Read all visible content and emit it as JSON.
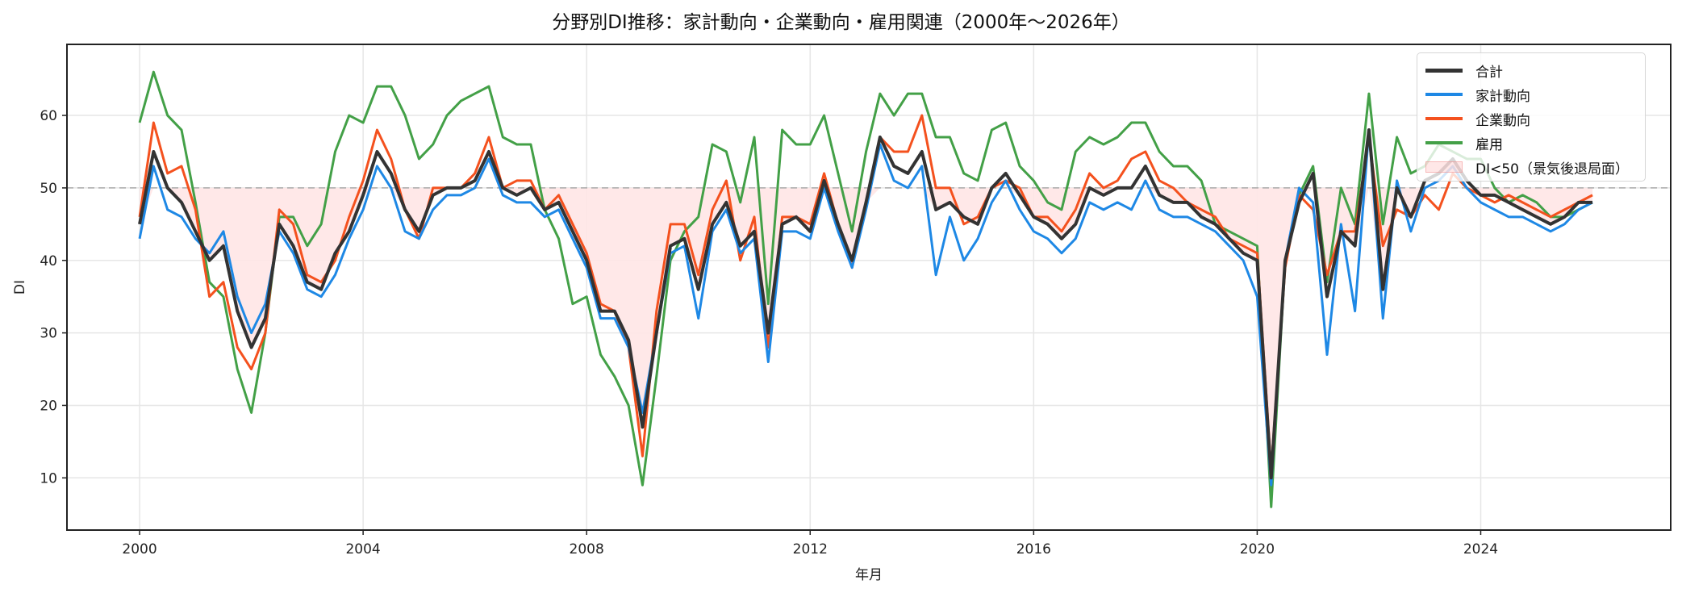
{
  "chart_data": {
    "type": "line",
    "title": "分野別DI推移：家計動向・企業動向・雇用関連（2000年〜2026年）",
    "xlabel": "年月",
    "ylabel": "DI",
    "xlim": [
      1998.7,
      2027.4
    ],
    "ylim": [
      2.8,
      69.8
    ],
    "x_ticks": [
      2000,
      2004,
      2008,
      2012,
      2016,
      2020,
      2024
    ],
    "y_ticks": [
      10,
      20,
      30,
      40,
      50,
      60
    ],
    "grid": true,
    "legend_position": "upper right",
    "reference_line": {
      "y": 50,
      "style": "dashed",
      "color": "#aaaaaa"
    },
    "shaded_region": {
      "label": "DI<50（景気後退局面）",
      "condition": "合計 < 50",
      "fill": "#ffe5e5"
    },
    "x": [
      2000.0,
      2000.25,
      2000.5,
      2000.75,
      2001.0,
      2001.25,
      2001.5,
      2001.75,
      2002.0,
      2002.25,
      2002.5,
      2002.75,
      2003.0,
      2003.25,
      2003.5,
      2003.75,
      2004.0,
      2004.25,
      2004.5,
      2004.75,
      2005.0,
      2005.25,
      2005.5,
      2005.75,
      2006.0,
      2006.25,
      2006.5,
      2006.75,
      2007.0,
      2007.25,
      2007.5,
      2007.75,
      2008.0,
      2008.25,
      2008.5,
      2008.75,
      2009.0,
      2009.25,
      2009.5,
      2009.75,
      2010.0,
      2010.25,
      2010.5,
      2010.75,
      2011.0,
      2011.25,
      2011.5,
      2011.75,
      2012.0,
      2012.25,
      2012.5,
      2012.75,
      2013.0,
      2013.25,
      2013.5,
      2013.75,
      2014.0,
      2014.25,
      2014.5,
      2014.75,
      2015.0,
      2015.25,
      2015.5,
      2015.75,
      2016.0,
      2016.25,
      2016.5,
      2016.75,
      2017.0,
      2017.25,
      2017.5,
      2017.75,
      2018.0,
      2018.25,
      2018.5,
      2018.75,
      2019.0,
      2019.25,
      2019.5,
      2019.75,
      2020.0,
      2020.25,
      2020.5,
      2020.75,
      2021.0,
      2021.25,
      2021.5,
      2021.75,
      2022.0,
      2022.25,
      2022.5,
      2022.75,
      2023.0,
      2023.25,
      2023.5,
      2023.75,
      2024.0,
      2024.25,
      2024.5,
      2024.75,
      2025.0,
      2025.25,
      2025.5,
      2025.75,
      2026.0
    ],
    "series": [
      {
        "name": "合計",
        "color": "#333333",
        "width": 4,
        "values": [
          45,
          55,
          50,
          48,
          44,
          40,
          42,
          33,
          28,
          32,
          45,
          42,
          37,
          36,
          41,
          44,
          49,
          55,
          52,
          47,
          44,
          49,
          50,
          50,
          51,
          55,
          50,
          49,
          50,
          47,
          48,
          44,
          40,
          33,
          33,
          29,
          17,
          30,
          42,
          43,
          36,
          45,
          48,
          42,
          44,
          30,
          45,
          46,
          44,
          51,
          45,
          40,
          48,
          57,
          53,
          52,
          55,
          47,
          48,
          46,
          45,
          50,
          52,
          49,
          46,
          45,
          43,
          45,
          50,
          49,
          50,
          50,
          53,
          49,
          48,
          48,
          46,
          45,
          43,
          41,
          40,
          10,
          40,
          48,
          52,
          35,
          44,
          42,
          58,
          36,
          50,
          46,
          51,
          52,
          54,
          51,
          49,
          49,
          48,
          47,
          46,
          45,
          46,
          48,
          48
        ]
      },
      {
        "name": "家計動向",
        "color": "#1e88e5",
        "width": 3,
        "values": [
          43,
          53,
          47,
          46,
          43,
          41,
          44,
          35,
          30,
          34,
          44,
          41,
          36,
          35,
          38,
          43,
          47,
          53,
          50,
          44,
          43,
          47,
          49,
          49,
          50,
          54,
          49,
          48,
          48,
          46,
          47,
          43,
          39,
          32,
          32,
          28,
          19,
          30,
          41,
          42,
          32,
          44,
          47,
          41,
          43,
          26,
          44,
          44,
          43,
          50,
          44,
          39,
          47,
          56,
          51,
          50,
          53,
          38,
          46,
          40,
          43,
          48,
          51,
          47,
          44,
          43,
          41,
          43,
          48,
          47,
          48,
          47,
          51,
          47,
          46,
          46,
          45,
          44,
          42,
          40,
          35,
          9,
          40,
          50,
          48,
          27,
          45,
          33,
          58,
          32,
          51,
          44,
          50,
          51,
          53,
          50,
          48,
          47,
          46,
          46,
          45,
          44,
          45,
          47,
          48
        ]
      },
      {
        "name": "企業動向",
        "color": "#f4511e",
        "width": 3,
        "values": [
          46,
          59,
          52,
          53,
          47,
          35,
          37,
          28,
          25,
          30,
          47,
          45,
          38,
          37,
          40,
          46,
          51,
          58,
          54,
          47,
          43,
          50,
          50,
          50,
          52,
          57,
          50,
          51,
          51,
          47,
          49,
          45,
          41,
          34,
          33,
          28,
          13,
          33,
          45,
          45,
          38,
          47,
          51,
          40,
          46,
          28,
          46,
          46,
          45,
          52,
          45,
          39,
          48,
          57,
          55,
          55,
          60,
          50,
          50,
          45,
          46,
          50,
          51,
          50,
          46,
          46,
          44,
          47,
          52,
          50,
          51,
          54,
          55,
          51,
          50,
          48,
          47,
          46,
          43,
          42,
          41,
          11,
          39,
          49,
          47,
          38,
          44,
          44,
          57,
          42,
          47,
          46,
          49,
          47,
          52,
          50,
          49,
          48,
          49,
          48,
          47,
          46,
          47,
          48,
          49
        ]
      },
      {
        "name": "雇用",
        "color": "#43a047",
        "width": 3,
        "values": [
          59,
          66,
          60,
          58,
          48,
          37,
          35,
          25,
          19,
          30,
          46,
          46,
          42,
          45,
          55,
          60,
          59,
          64,
          64,
          60,
          54,
          56,
          60,
          62,
          63,
          64,
          57,
          56,
          56,
          47,
          43,
          34,
          35,
          27,
          24,
          20,
          9,
          24,
          40,
          44,
          46,
          56,
          55,
          48,
          57,
          34,
          58,
          56,
          56,
          60,
          52,
          44,
          55,
          63,
          60,
          63,
          63,
          57,
          57,
          52,
          51,
          58,
          59,
          53,
          51,
          48,
          47,
          55,
          57,
          56,
          57,
          59,
          59,
          55,
          53,
          53,
          51,
          45,
          44,
          43,
          42,
          6,
          40,
          49,
          53,
          37,
          50,
          45,
          63,
          45,
          57,
          52,
          53,
          56,
          55,
          54,
          54,
          50,
          48,
          49,
          48,
          46,
          46,
          47,
          48
        ]
      }
    ]
  }
}
